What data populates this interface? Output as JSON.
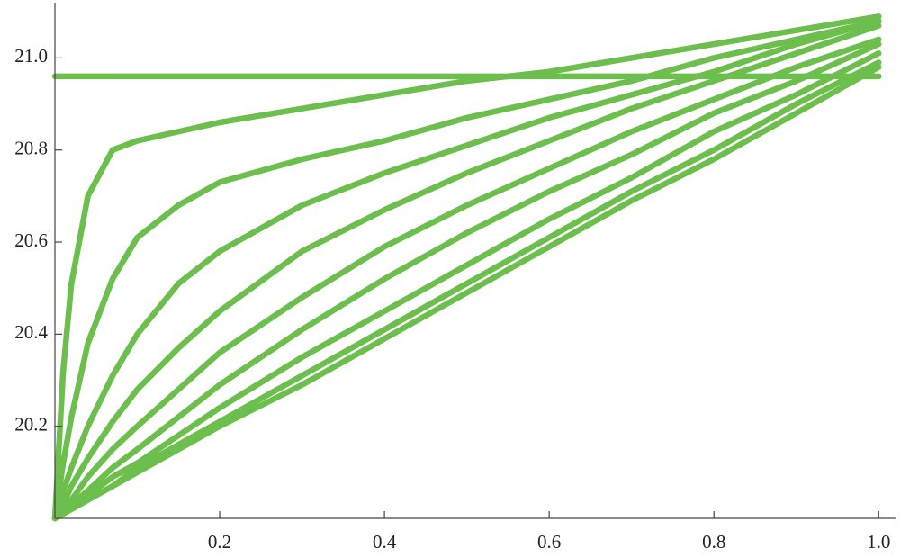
{
  "chart_data": {
    "type": "line",
    "color": "#6cbf4c",
    "xlim": [
      0,
      1.015
    ],
    "ylim": [
      20.0,
      21.12
    ],
    "xticks": [
      0.2,
      0.4,
      0.6,
      0.8,
      {
        "value": 1,
        "label": "1.0"
      }
    ],
    "yticks": [
      20.2,
      20.4,
      20.6,
      20.8,
      {
        "value": 21,
        "label": "21.0"
      }
    ],
    "x": [
      0,
      0.01,
      0.02,
      0.04,
      0.07,
      0.1,
      0.15,
      0.2,
      0.3,
      0.4,
      0.5,
      0.6,
      0.7,
      0.8,
      0.9,
      1.0
    ],
    "series": [
      {
        "values": [
          20.96,
          20.96,
          20.96,
          20.96,
          20.96,
          20.96,
          20.96,
          20.96,
          20.96,
          20.96,
          20.96,
          20.96,
          20.96,
          20.96,
          20.96,
          20.96
        ]
      },
      {
        "values": [
          20.0,
          20.32,
          20.51,
          20.7,
          20.8,
          20.82,
          20.84,
          20.86,
          20.89,
          20.92,
          20.95,
          20.97,
          21.0,
          21.03,
          21.06,
          21.09
        ]
      },
      {
        "values": [
          20.0,
          20.12,
          20.22,
          20.38,
          20.52,
          20.61,
          20.68,
          20.73,
          20.78,
          20.82,
          20.87,
          20.91,
          20.95,
          21.0,
          21.04,
          21.08
        ]
      },
      {
        "values": [
          20.0,
          20.06,
          20.11,
          20.2,
          20.31,
          20.4,
          20.51,
          20.58,
          20.68,
          20.75,
          20.81,
          20.87,
          20.92,
          20.97,
          21.03,
          21.08
        ]
      },
      {
        "values": [
          20.0,
          20.03,
          20.07,
          20.13,
          20.21,
          20.28,
          20.37,
          20.45,
          20.58,
          20.67,
          20.75,
          20.82,
          20.89,
          20.95,
          21.01,
          21.07
        ]
      },
      {
        "values": [
          20.0,
          20.02,
          20.04,
          20.09,
          20.15,
          20.2,
          20.28,
          20.36,
          20.48,
          20.59,
          20.68,
          20.76,
          20.84,
          20.91,
          20.98,
          21.04
        ]
      },
      {
        "values": [
          20.0,
          20.02,
          20.03,
          20.06,
          20.11,
          20.15,
          20.22,
          20.29,
          20.41,
          20.52,
          20.62,
          20.71,
          20.79,
          20.88,
          20.95,
          21.03
        ]
      },
      {
        "values": [
          20.0,
          20.01,
          20.03,
          20.05,
          20.09,
          20.12,
          20.18,
          20.24,
          20.35,
          20.45,
          20.55,
          20.65,
          20.74,
          20.84,
          20.92,
          21.01
        ]
      },
      {
        "values": [
          20.0,
          20.01,
          20.02,
          20.04,
          20.07,
          20.11,
          20.16,
          20.21,
          20.31,
          20.41,
          20.51,
          20.61,
          20.71,
          20.8,
          20.9,
          20.99
        ]
      },
      {
        "values": [
          20.0,
          20.01,
          20.02,
          20.04,
          20.07,
          20.1,
          20.15,
          20.2,
          20.29,
          20.39,
          20.49,
          20.59,
          20.69,
          20.78,
          20.88,
          20.98
        ]
      }
    ]
  }
}
